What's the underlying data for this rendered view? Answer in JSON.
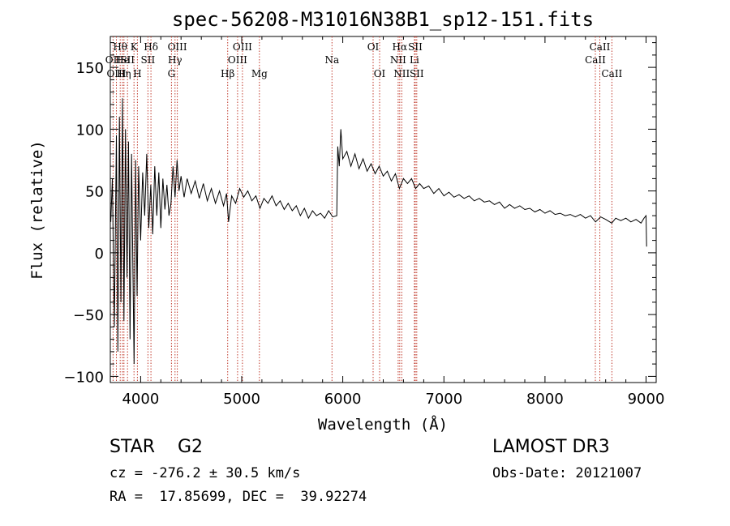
{
  "chart_data": {
    "type": "line",
    "title": "spec-56208-M31016N38B1_sp12-151.fits",
    "xlabel": "Wavelength (Å)",
    "ylabel": "Flux (relative)",
    "xlim": [
      3700,
      9100
    ],
    "ylim": [
      -105,
      175
    ],
    "xticks": [
      4000,
      5000,
      6000,
      7000,
      8000,
      9000
    ],
    "yticks": [
      -100,
      -50,
      0,
      50,
      100,
      150
    ],
    "line_color": "#000000",
    "marker_color": "#c0392b",
    "lines": [
      {
        "label": "OII",
        "wave": 3727,
        "row": 2
      },
      {
        "label": "Hθ",
        "wave": 3798,
        "row": 1
      },
      {
        "label": "OIII",
        "wave": 3760,
        "row": 3
      },
      {
        "label": "He",
        "wave": 3820,
        "row": 2
      },
      {
        "label": "Hη",
        "wave": 3835,
        "row": 3
      },
      {
        "label": "SII",
        "wave": 3870,
        "row": 2
      },
      {
        "label": "K",
        "wave": 3934,
        "row": 1
      },
      {
        "label": "H",
        "wave": 3968,
        "row": 3
      },
      {
        "label": "SII",
        "wave": 4072,
        "row": 2
      },
      {
        "label": "Hδ",
        "wave": 4102,
        "row": 1
      },
      {
        "label": "OIII",
        "wave": 4363,
        "row": 1
      },
      {
        "label": "Hγ",
        "wave": 4340,
        "row": 2
      },
      {
        "label": "G",
        "wave": 4305,
        "row": 3
      },
      {
        "label": "Hβ",
        "wave": 4861,
        "row": 3
      },
      {
        "label": "OIII",
        "wave": 4959,
        "row": 2
      },
      {
        "label": "OIII",
        "wave": 5007,
        "row": 1
      },
      {
        "label": "Mg",
        "wave": 5175,
        "row": 3
      },
      {
        "label": "Na",
        "wave": 5893,
        "row": 2
      },
      {
        "label": "OI",
        "wave": 6300,
        "row": 1
      },
      {
        "label": "OI",
        "wave": 6364,
        "row": 3
      },
      {
        "label": "NII",
        "wave": 6548,
        "row": 2
      },
      {
        "label": "Hα",
        "wave": 6563,
        "row": 1
      },
      {
        "label": "NII",
        "wave": 6583,
        "row": 3
      },
      {
        "label": "Li",
        "wave": 6708,
        "row": 2
      },
      {
        "label": "SII",
        "wave": 6717,
        "row": 1
      },
      {
        "label": "SII",
        "wave": 6731,
        "row": 3
      },
      {
        "label": "CaII",
        "wave": 8498,
        "row": 2
      },
      {
        "label": "CaII",
        "wave": 8542,
        "row": 1
      },
      {
        "label": "CaII",
        "wave": 8662,
        "row": 3
      }
    ],
    "spectrum": [
      [
        3705,
        25
      ],
      [
        3720,
        60
      ],
      [
        3740,
        -60
      ],
      [
        3760,
        95
      ],
      [
        3775,
        -80
      ],
      [
        3790,
        110
      ],
      [
        3805,
        -40
      ],
      [
        3820,
        125
      ],
      [
        3835,
        -55
      ],
      [
        3850,
        100
      ],
      [
        3865,
        -20
      ],
      [
        3880,
        90
      ],
      [
        3895,
        -70
      ],
      [
        3910,
        80
      ],
      [
        3925,
        -20
      ],
      [
        3935,
        -90
      ],
      [
        3950,
        75
      ],
      [
        3965,
        -35
      ],
      [
        3980,
        70
      ],
      [
        4000,
        10
      ],
      [
        4020,
        65
      ],
      [
        4040,
        30
      ],
      [
        4060,
        80
      ],
      [
        4080,
        20
      ],
      [
        4100,
        55
      ],
      [
        4120,
        15
      ],
      [
        4140,
        70
      ],
      [
        4160,
        30
      ],
      [
        4180,
        65
      ],
      [
        4200,
        20
      ],
      [
        4220,
        60
      ],
      [
        4240,
        35
      ],
      [
        4260,
        55
      ],
      [
        4280,
        30
      ],
      [
        4300,
        40
      ],
      [
        4320,
        70
      ],
      [
        4340,
        45
      ],
      [
        4360,
        75
      ],
      [
        4380,
        50
      ],
      [
        4400,
        62
      ],
      [
        4430,
        45
      ],
      [
        4460,
        60
      ],
      [
        4500,
        48
      ],
      [
        4540,
        58
      ],
      [
        4580,
        44
      ],
      [
        4620,
        56
      ],
      [
        4660,
        42
      ],
      [
        4700,
        52
      ],
      [
        4740,
        40
      ],
      [
        4780,
        50
      ],
      [
        4820,
        38
      ],
      [
        4850,
        48
      ],
      [
        4870,
        25
      ],
      [
        4900,
        46
      ],
      [
        4940,
        40
      ],
      [
        4980,
        52
      ],
      [
        5020,
        45
      ],
      [
        5060,
        50
      ],
      [
        5100,
        42
      ],
      [
        5140,
        46
      ],
      [
        5180,
        36
      ],
      [
        5220,
        44
      ],
      [
        5260,
        40
      ],
      [
        5300,
        46
      ],
      [
        5340,
        38
      ],
      [
        5380,
        42
      ],
      [
        5420,
        35
      ],
      [
        5460,
        40
      ],
      [
        5500,
        34
      ],
      [
        5540,
        38
      ],
      [
        5580,
        30
      ],
      [
        5620,
        36
      ],
      [
        5660,
        28
      ],
      [
        5700,
        34
      ],
      [
        5740,
        30
      ],
      [
        5780,
        32
      ],
      [
        5820,
        28
      ],
      [
        5860,
        34
      ],
      [
        5900,
        29
      ],
      [
        5940,
        30
      ],
      [
        5950,
        86
      ],
      [
        5965,
        70
      ],
      [
        5980,
        100
      ],
      [
        6000,
        76
      ],
      [
        6040,
        82
      ],
      [
        6080,
        70
      ],
      [
        6120,
        80
      ],
      [
        6160,
        68
      ],
      [
        6200,
        76
      ],
      [
        6240,
        66
      ],
      [
        6280,
        72
      ],
      [
        6320,
        64
      ],
      [
        6360,
        70
      ],
      [
        6400,
        62
      ],
      [
        6440,
        66
      ],
      [
        6480,
        58
      ],
      [
        6520,
        64
      ],
      [
        6560,
        52
      ],
      [
        6600,
        60
      ],
      [
        6640,
        56
      ],
      [
        6680,
        60
      ],
      [
        6720,
        52
      ],
      [
        6760,
        56
      ],
      [
        6800,
        52
      ],
      [
        6850,
        54
      ],
      [
        6900,
        48
      ],
      [
        6950,
        52
      ],
      [
        7000,
        46
      ],
      [
        7050,
        49
      ],
      [
        7100,
        45
      ],
      [
        7150,
        47
      ],
      [
        7200,
        44
      ],
      [
        7250,
        46
      ],
      [
        7300,
        42
      ],
      [
        7350,
        44
      ],
      [
        7400,
        41
      ],
      [
        7450,
        42
      ],
      [
        7500,
        39
      ],
      [
        7550,
        41
      ],
      [
        7600,
        36
      ],
      [
        7650,
        39
      ],
      [
        7700,
        36
      ],
      [
        7750,
        38
      ],
      [
        7800,
        35
      ],
      [
        7850,
        36
      ],
      [
        7900,
        33
      ],
      [
        7950,
        35
      ],
      [
        8000,
        32
      ],
      [
        8050,
        34
      ],
      [
        8100,
        31
      ],
      [
        8150,
        32
      ],
      [
        8200,
        30
      ],
      [
        8250,
        31
      ],
      [
        8300,
        29
      ],
      [
        8350,
        31
      ],
      [
        8400,
        28
      ],
      [
        8450,
        30
      ],
      [
        8500,
        25
      ],
      [
        8550,
        29
      ],
      [
        8600,
        27
      ],
      [
        8660,
        24
      ],
      [
        8700,
        28
      ],
      [
        8750,
        26
      ],
      [
        8800,
        28
      ],
      [
        8850,
        25
      ],
      [
        8900,
        27
      ],
      [
        8950,
        24
      ],
      [
        8980,
        28
      ],
      [
        9000,
        30
      ],
      [
        9005,
        5
      ]
    ]
  },
  "info": {
    "left_line1": "STAR    G2",
    "left_line2": "cz = -276.2 ± 30.5 km/s",
    "left_line3": "RA =  17.85699, DEC =  39.92274",
    "right_line1": "LAMOST DR3",
    "right_line2": "Obs-Date: 20121007"
  }
}
